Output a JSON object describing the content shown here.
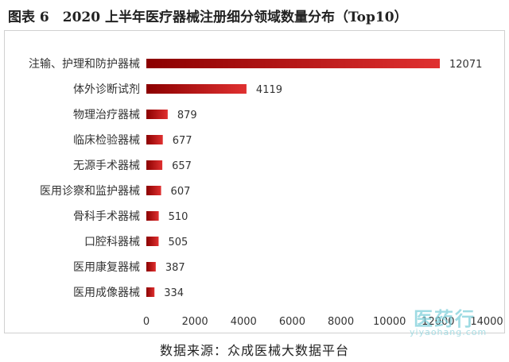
{
  "title": "图表 6　2020 上半年医疗器械注册细分领域数量分布（Top10）",
  "source": "数据来源：众成医械大数据平台",
  "watermark": {
    "logo_text": "医药行",
    "logo_sub": "yiyaohang.com"
  },
  "colors": {
    "bar_dark": "#8b0000",
    "bar_light": "#e03030"
  },
  "chart_data": {
    "type": "bar",
    "orientation": "horizontal",
    "categories": [
      "注输、护理和防护器械",
      "体外诊断试剂",
      "物理治疗器械",
      "临床检验器械",
      "无源手术器械",
      "医用诊察和监护器械",
      "骨科手术器械",
      "口腔科器械",
      "医用康复器械",
      "医用成像器械"
    ],
    "values": [
      12071,
      4119,
      879,
      677,
      657,
      607,
      510,
      505,
      387,
      334
    ],
    "data_labels": [
      "12071",
      "4119",
      "879",
      "677",
      "657",
      "607",
      "510",
      "505",
      "387",
      "334"
    ],
    "xlim": [
      0,
      14000
    ],
    "xticks": [
      "0",
      "2000",
      "4000",
      "6000",
      "8000",
      "10000",
      "12000",
      "14000"
    ],
    "xtick_values": [
      0,
      2000,
      4000,
      6000,
      8000,
      10000,
      12000,
      14000
    ],
    "grid": false,
    "legend": "none"
  }
}
